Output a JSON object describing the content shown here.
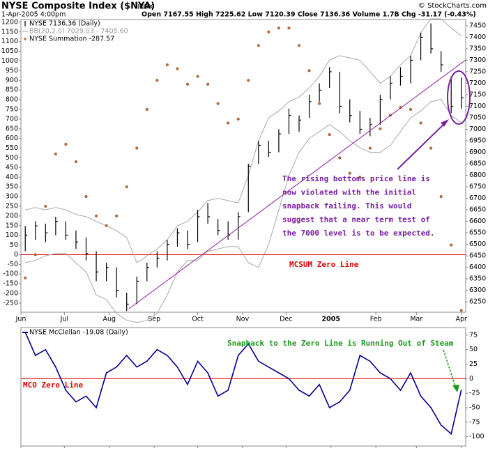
{
  "chart_data": [
    {
      "type": "ohlc",
      "title": "NYSE Composite Index ($NYA)",
      "exchange": "INDX",
      "date": "1-Apr-2005 4:00pm",
      "quote": "Open 7167.55 High 7225.62 Low 7120.39 Close 7136.36 Volume 1.7B Chg -31.17 (-0.43%)",
      "copyright": "© StockCharts.com",
      "x": [
        "2004-06-04",
        "2004-06-11",
        "2004-06-18",
        "2004-06-25",
        "2004-07-02",
        "2004-07-09",
        "2004-07-16",
        "2004-07-23",
        "2004-07-30",
        "2004-08-06",
        "2004-08-13",
        "2004-08-20",
        "2004-08-27",
        "2004-09-03",
        "2004-09-10",
        "2004-09-17",
        "2004-09-24",
        "2004-10-01",
        "2004-10-08",
        "2004-10-15",
        "2004-10-22",
        "2004-10-29",
        "2004-11-05",
        "2004-11-12",
        "2004-11-19",
        "2004-11-26",
        "2004-12-03",
        "2004-12-10",
        "2004-12-17",
        "2004-12-24",
        "2004-12-31",
        "2005-01-07",
        "2005-01-14",
        "2005-01-21",
        "2005-01-28",
        "2005-02-04",
        "2005-02-11",
        "2005-02-18",
        "2005-02-25",
        "2005-03-04",
        "2005-03-11",
        "2005-03-18",
        "2005-03-25",
        "2005-04-01"
      ],
      "xlim": [
        "2004-06-01",
        "2005-04-04"
      ],
      "xticks": [
        {
          "value": "2004-06-01",
          "label": "Jun"
        },
        {
          "value": "2004-07-01",
          "label": "Jul"
        },
        {
          "value": "2004-08-01",
          "label": "Aug"
        },
        {
          "value": "2004-09-01",
          "label": "Sep"
        },
        {
          "value": "2004-10-01",
          "label": "Oct"
        },
        {
          "value": "2004-11-01",
          "label": "Nov"
        },
        {
          "value": "2004-12-01",
          "label": "Dec"
        },
        {
          "value": "2005-01-01",
          "label": "2005"
        },
        {
          "value": "2005-02-01",
          "label": "Feb"
        },
        {
          "value": "2005-03-01",
          "label": "Mar"
        },
        {
          "value": "2005-04-01",
          "label": "Apr"
        }
      ],
      "ylim": [
        6205,
        7477
      ],
      "yticks": [
        6250,
        6300,
        6350,
        6400,
        6450,
        6500,
        6550,
        6600,
        6650,
        6700,
        6750,
        6800,
        6850,
        6900,
        6950,
        7000,
        7050,
        7100,
        7150,
        7200,
        7250,
        7300,
        7350,
        7400,
        7450
      ],
      "y2lim": [
        -297,
        1214
      ],
      "y2ticks": [
        -250,
        -200,
        -150,
        -100,
        -50,
        0,
        50,
        100,
        150,
        200,
        250,
        300,
        350,
        400,
        450,
        500,
        550,
        600,
        650,
        700,
        750,
        800,
        850,
        900,
        950,
        1000,
        1050,
        1100,
        1150,
        1200
      ],
      "series": [
        {
          "name": "NYSE 7136.36 (Daily)",
          "color": "#000000",
          "high": [
            6580,
            6600,
            6590,
            6620,
            6600,
            6560,
            6530,
            6470,
            6420,
            6400,
            6290,
            6360,
            6420,
            6470,
            6520,
            6570,
            6560,
            6650,
            6680,
            6610,
            6600,
            6640,
            6850,
            6950,
            6950,
            7000,
            7090,
            7060,
            7150,
            7200,
            7270,
            7250,
            7130,
            7080,
            7050,
            7150,
            7230,
            7270,
            7320,
            7420,
            7460,
            7340,
            7230,
            7225.62
          ],
          "low": [
            6470,
            6520,
            6510,
            6540,
            6520,
            6480,
            6430,
            6340,
            6340,
            6270,
            6210,
            6240,
            6340,
            6400,
            6430,
            6490,
            6480,
            6510,
            6590,
            6540,
            6520,
            6520,
            6640,
            6850,
            6880,
            6900,
            6980,
            6990,
            7050,
            7120,
            7180,
            7070,
            7030,
            6980,
            6970,
            7020,
            7130,
            7190,
            7200,
            7300,
            7330,
            7250,
            7070,
            7090
          ],
          "close": [
            6540,
            6580,
            6550,
            6600,
            6540,
            6510,
            6460,
            6380,
            6400,
            6300,
            6240,
            6340,
            6400,
            6440,
            6500,
            6550,
            6500,
            6620,
            6620,
            6560,
            6540,
            6620,
            6840,
            6930,
            6900,
            6980,
            7060,
            7040,
            7120,
            7170,
            7250,
            7100,
            7060,
            7000,
            7020,
            7130,
            7200,
            7230,
            7300,
            7400,
            7350,
            7280,
            7100,
            7136.36
          ]
        },
        {
          "name": "BB(20,2.0) 7029.03 - 7405.60",
          "color": "#a8a8a8",
          "upper": [
            6650,
            6660,
            6650,
            6660,
            6650,
            6630,
            6620,
            6600,
            6580,
            6560,
            6530,
            6420,
            6450,
            6480,
            6520,
            6580,
            6600,
            6640,
            6690,
            6700,
            6690,
            6680,
            6800,
            6950,
            7050,
            7080,
            7120,
            7140,
            7180,
            7230,
            7300,
            7320,
            7310,
            7300,
            7250,
            7200,
            7230,
            7280,
            7320,
            7420,
            7480,
            7480,
            7440,
            7405.6
          ],
          "lower": [
            6420,
            6430,
            6450,
            6460,
            6460,
            6420,
            6380,
            6280,
            6260,
            6200,
            6170,
            6160,
            6170,
            6200,
            6280,
            6380,
            6430,
            6430,
            6470,
            6480,
            6490,
            6490,
            6420,
            6400,
            6500,
            6650,
            6800,
            6900,
            6960,
            6990,
            7020,
            6990,
            6950,
            6920,
            6900,
            6900,
            6930,
            6990,
            7050,
            7080,
            7120,
            7130,
            7060,
            7029.03
          ]
        },
        {
          "name": "NYSE Summation -287.57",
          "color": "#c8703a",
          "axis": "y2",
          "values": [
            -120,
            0,
            250,
            520,
            570,
            480,
            300,
            200,
            150,
            200,
            350,
            550,
            750,
            900,
            980,
            960,
            880,
            920,
            880,
            780,
            680,
            700,
            900,
            1080,
            1150,
            1170,
            1170,
            1080,
            950,
            780,
            620,
            500,
            420,
            400,
            550,
            650,
            720,
            760,
            750,
            680,
            550,
            300,
            50,
            -287.57
          ]
        }
      ],
      "annotations": {
        "note": [
          "The rising bottoms price line is",
          "now violated with the initial",
          "snapback failing. This would",
          "suggest that a near term test of",
          "the 7000 level is to be expected."
        ],
        "zero_line": "MCSUM Zero Line"
      }
    },
    {
      "type": "line",
      "x": [
        "2004-06-04",
        "2004-06-11",
        "2004-06-18",
        "2004-06-25",
        "2004-07-02",
        "2004-07-09",
        "2004-07-16",
        "2004-07-23",
        "2004-07-30",
        "2004-08-06",
        "2004-08-13",
        "2004-08-20",
        "2004-08-27",
        "2004-09-03",
        "2004-09-10",
        "2004-09-17",
        "2004-09-24",
        "2004-10-01",
        "2004-10-08",
        "2004-10-15",
        "2004-10-22",
        "2004-10-29",
        "2004-11-05",
        "2004-11-12",
        "2004-11-19",
        "2004-11-26",
        "2004-12-03",
        "2004-12-10",
        "2004-12-17",
        "2004-12-24",
        "2004-12-31",
        "2005-01-07",
        "2005-01-14",
        "2005-01-21",
        "2005-01-28",
        "2005-02-04",
        "2005-02-11",
        "2005-02-18",
        "2005-02-25",
        "2005-03-04",
        "2005-03-11",
        "2005-03-18",
        "2005-03-25",
        "2005-04-01"
      ],
      "xlim": [
        "2004-06-01",
        "2005-04-04"
      ],
      "xticks": [
        {
          "value": "2004-06-01",
          "label": "Jun"
        },
        {
          "value": "2004-07-01",
          "label": "Jul"
        },
        {
          "value": "2004-08-01",
          "label": "Aug"
        },
        {
          "value": "2004-09-01",
          "label": "Sep"
        },
        {
          "value": "2004-10-01",
          "label": "Oct"
        },
        {
          "value": "2004-11-01",
          "label": "Nov"
        },
        {
          "value": "2004-12-01",
          "label": "Dec"
        },
        {
          "value": "2005-01-01",
          "label": "2005"
        },
        {
          "value": "2005-02-01",
          "label": "Feb"
        },
        {
          "value": "2005-03-01",
          "label": "Mar"
        },
        {
          "value": "2005-04-01",
          "label": "Apr"
        }
      ],
      "ylim": [
        -116,
        88
      ],
      "yticks": [
        -100,
        -75,
        -50,
        -25,
        0,
        25,
        50,
        75
      ],
      "series": [
        {
          "name": "NYSE McClellan -19.08 (Daily)",
          "color": "#00008b",
          "values": [
            80,
            40,
            50,
            20,
            -20,
            -40,
            -30,
            -50,
            10,
            20,
            40,
            20,
            30,
            50,
            40,
            20,
            -10,
            30,
            10,
            -30,
            -20,
            40,
            60,
            30,
            20,
            10,
            0,
            -20,
            -30,
            -10,
            -50,
            -40,
            -20,
            40,
            30,
            10,
            0,
            -20,
            10,
            -30,
            -50,
            -80,
            -95,
            -19.08
          ]
        }
      ],
      "annotations": {
        "zero_line": "MCO Zero Line",
        "note": "Snapback to the Zero Line is Running Out of Steam"
      }
    }
  ]
}
